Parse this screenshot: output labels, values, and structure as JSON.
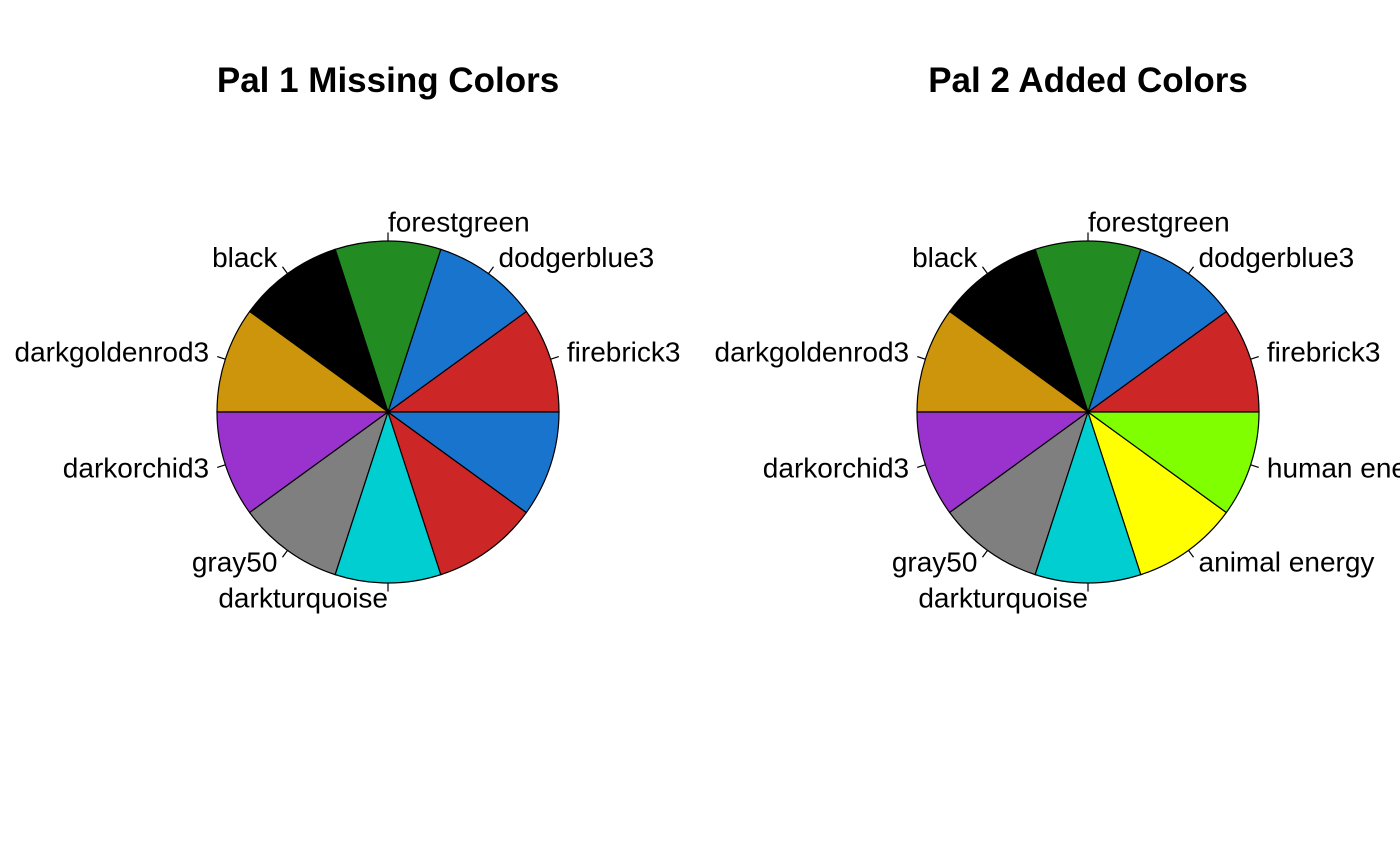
{
  "chart_data": [
    {
      "type": "pie",
      "title": "Pal 1 Missing Colors",
      "start_angle_deg": 0,
      "direction": "counterclockwise",
      "slices": [
        {
          "label": "firebrick3",
          "value": 1,
          "color": "#CD2626"
        },
        {
          "label": "dodgerblue3",
          "value": 1,
          "color": "#1874CD"
        },
        {
          "label": "forestgreen",
          "value": 1,
          "color": "#228B22"
        },
        {
          "label": "black",
          "value": 1,
          "color": "#000000"
        },
        {
          "label": "darkgoldenrod3",
          "value": 1,
          "color": "#CD950C"
        },
        {
          "label": "darkorchid3",
          "value": 1,
          "color": "#9A32CD"
        },
        {
          "label": "gray50",
          "value": 1,
          "color": "#7F7F7F"
        },
        {
          "label": "darkturquoise",
          "value": 1,
          "color": "#00CED1"
        },
        {
          "label": "",
          "value": 1,
          "color": "#CD2626"
        },
        {
          "label": "",
          "value": 1,
          "color": "#1874CD"
        }
      ]
    },
    {
      "type": "pie",
      "title": "Pal 2 Added Colors",
      "start_angle_deg": 0,
      "direction": "counterclockwise",
      "slices": [
        {
          "label": "firebrick3",
          "value": 1,
          "color": "#CD2626"
        },
        {
          "label": "dodgerblue3",
          "value": 1,
          "color": "#1874CD"
        },
        {
          "label": "forestgreen",
          "value": 1,
          "color": "#228B22"
        },
        {
          "label": "black",
          "value": 1,
          "color": "#000000"
        },
        {
          "label": "darkgoldenrod3",
          "value": 1,
          "color": "#CD950C"
        },
        {
          "label": "darkorchid3",
          "value": 1,
          "color": "#9A32CD"
        },
        {
          "label": "gray50",
          "value": 1,
          "color": "#7F7F7F"
        },
        {
          "label": "darkturquoise",
          "value": 1,
          "color": "#00CED1"
        },
        {
          "label": "animal energy",
          "value": 1,
          "color": "#FFFF00"
        },
        {
          "label": "human energy",
          "value": 1,
          "color": "#7FFF00"
        }
      ]
    }
  ]
}
